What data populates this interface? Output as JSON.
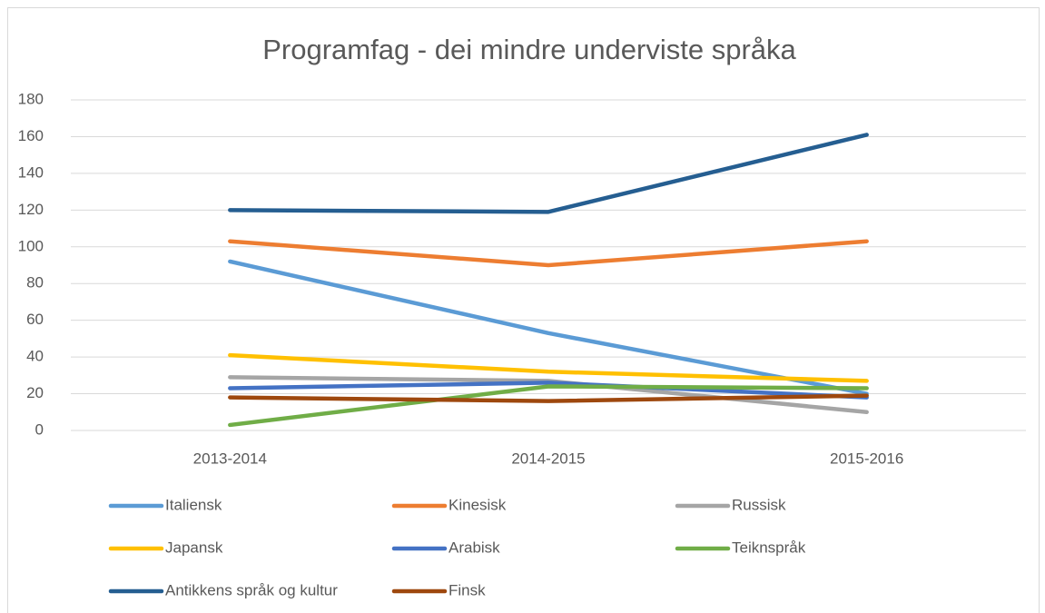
{
  "chart_data": {
    "type": "line",
    "title": "Programfag - dei mindre underviste språka",
    "categories": [
      "2013-2014",
      "2014-2015",
      "2015-2016"
    ],
    "series": [
      {
        "name": "Italiensk",
        "color": "#5b9bd5",
        "values": [
          92,
          53,
          20
        ]
      },
      {
        "name": "Kinesisk",
        "color": "#ed7d31",
        "values": [
          103,
          90,
          103
        ]
      },
      {
        "name": "Russisk",
        "color": "#a5a5a5",
        "values": [
          29,
          27,
          10
        ]
      },
      {
        "name": "Japansk",
        "color": "#ffc000",
        "values": [
          41,
          32,
          27
        ]
      },
      {
        "name": "Arabisk",
        "color": "#4472c4",
        "values": [
          23,
          26,
          18
        ]
      },
      {
        "name": "Teiknspråk",
        "color": "#70ad47",
        "values": [
          3,
          24,
          23
        ]
      },
      {
        "name": "Antikkens språk og kultur",
        "color": "#255e91",
        "values": [
          120,
          119,
          161
        ]
      },
      {
        "name": "Finsk",
        "color": "#9e480e",
        "values": [
          18,
          16,
          19
        ]
      }
    ],
    "ylim": [
      0,
      180
    ],
    "yticks": [
      0,
      20,
      40,
      60,
      80,
      100,
      120,
      140,
      160,
      180
    ],
    "grid": true,
    "legend": "bottom"
  }
}
